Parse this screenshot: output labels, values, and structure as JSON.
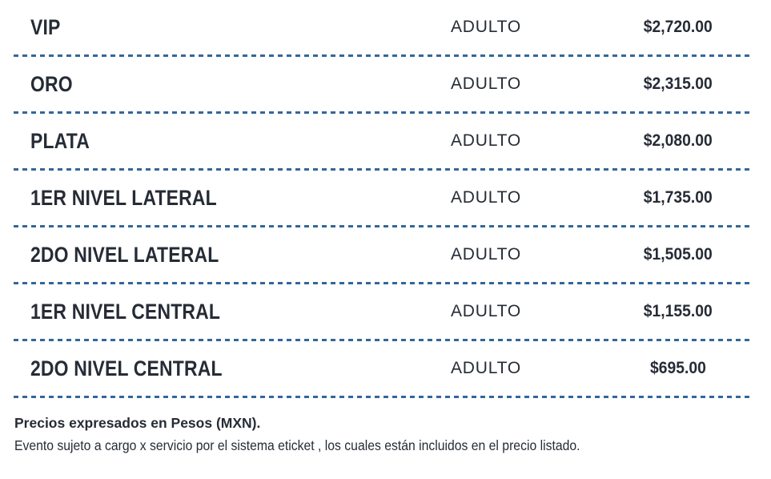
{
  "table": {
    "rows": [
      {
        "section": "VIP",
        "type": "ADULTO",
        "price": "$2,720.00"
      },
      {
        "section": "ORO",
        "type": "ADULTO",
        "price": "$2,315.00"
      },
      {
        "section": "PLATA",
        "type": "ADULTO",
        "price": "$2,080.00"
      },
      {
        "section": "1ER NIVEL LATERAL",
        "type": "ADULTO",
        "price": "$1,735.00"
      },
      {
        "section": "2DO NIVEL LATERAL",
        "type": "ADULTO",
        "price": "$1,505.00"
      },
      {
        "section": "1ER NIVEL CENTRAL",
        "type": "ADULTO",
        "price": "$1,155.00"
      },
      {
        "section": "2DO NIVEL CENTRAL",
        "type": "ADULTO",
        "price": "$695.00"
      }
    ]
  },
  "footer": {
    "note_bold": "Precios expresados en Pesos (MXN).",
    "note_regular": "Evento sujeto a cargo x servicio por el sistema eticket , los cuales están incluidos en el precio listado."
  },
  "colors": {
    "text": "#262c36",
    "separator": "#34679a",
    "background": "#ffffff"
  }
}
